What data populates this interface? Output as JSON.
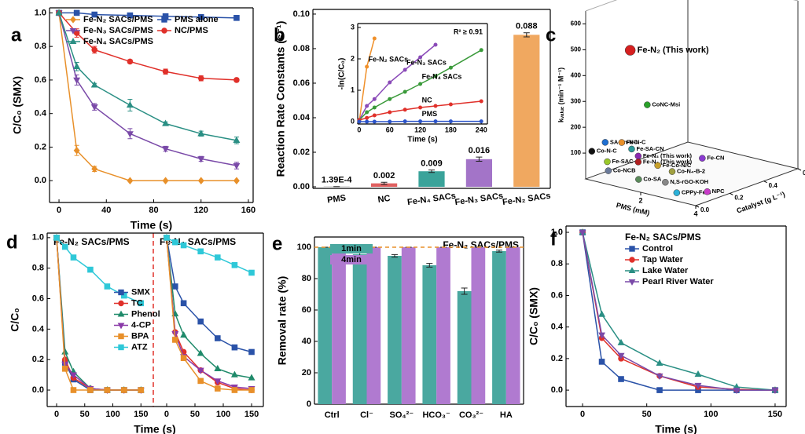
{
  "chart_data": [
    {
      "type": "line",
      "panel": "a",
      "xlabel": "Time (s)",
      "ylabel": "C/C₀ (SMX)",
      "x": [
        0,
        15,
        30,
        60,
        90,
        120,
        150
      ],
      "xlim": [
        -8,
        164
      ],
      "xticks": [
        0,
        40,
        80,
        120,
        160
      ],
      "ylim": [
        -0.13,
        1.03
      ],
      "yticks": [
        {
          "value": 0,
          "label": "0.0"
        },
        {
          "value": 0.2,
          "label": "0.2"
        },
        {
          "value": 0.4,
          "label": "0.4"
        },
        {
          "value": 0.6,
          "label": "0.6"
        },
        {
          "value": 0.8,
          "label": "0.8"
        },
        {
          "value": 1,
          "label": "1.0"
        }
      ],
      "legend": "upper right",
      "legend_columns": 2,
      "series": [
        {
          "name": "Fe-N₂ SACs/PMS",
          "color": "#e8902a",
          "marker": "diamond",
          "values": [
            1,
            0.18,
            0.07,
            0,
            0,
            0,
            0
          ],
          "errors": [
            0,
            0.03,
            0.015,
            0,
            0,
            0,
            0
          ]
        },
        {
          "name": "PMS alone",
          "color": "#2a52a8",
          "marker": "square",
          "values": [
            1,
            1,
            0.99,
            0.985,
            0.98,
            0.975,
            0.97
          ],
          "errors": [
            0,
            0,
            0,
            0,
            0,
            0,
            0
          ]
        },
        {
          "name": "Fe-N₃ SACs/PMS",
          "color": "#7a4aa8",
          "marker": "triangle-down",
          "values": [
            1,
            0.6,
            0.44,
            0.28,
            0.19,
            0.13,
            0.09
          ],
          "errors": [
            0,
            0.03,
            0.02,
            0.03,
            0.015,
            0.015,
            0.02
          ]
        },
        {
          "name": "NC/PMS",
          "color": "#e0302a",
          "marker": "circle",
          "values": [
            1,
            0.88,
            0.78,
            0.71,
            0.65,
            0.61,
            0.6
          ],
          "errors": [
            0,
            0.025,
            0.02,
            0.01,
            0.015,
            0.015,
            0.01
          ]
        },
        {
          "name": "Fe-N₄ SACs/PMS",
          "color": "#2a8f84",
          "marker": "triangle",
          "values": [
            1,
            0.68,
            0.57,
            0.45,
            0.34,
            0.28,
            0.24
          ],
          "errors": [
            0,
            0.025,
            0.01,
            0.035,
            0.01,
            0.015,
            0.02
          ]
        }
      ]
    },
    {
      "type": "bar",
      "panel": "b",
      "ylabel": "Reaction Rate Constants (s⁻¹)",
      "categories": [
        "PMS",
        "NC",
        "Fe-N₄ SACs",
        "Fe-N₃ SACs",
        "Fe-N₂ SACs"
      ],
      "values": [
        0.000139,
        0.002,
        0.009,
        0.016,
        0.088
      ],
      "errors": [
        0,
        0.0006,
        0.0007,
        0.0012,
        0.0012
      ],
      "value_labels": [
        "1.39E-4",
        "0.002",
        "0.009",
        "0.016",
        "0.088"
      ],
      "colors": [
        "#888888",
        "#e06060",
        "#3aa39a",
        "#a374c8",
        "#f0a860"
      ],
      "ylim": [
        -0.0009,
        0.1027
      ],
      "yticks": [
        {
          "value": 0,
          "label": "0.00"
        },
        {
          "value": 0.02,
          "label": "0.02"
        },
        {
          "value": 0.04,
          "label": "0.04"
        },
        {
          "value": 0.06,
          "label": "0.06"
        },
        {
          "value": 0.08,
          "label": "0.08"
        },
        {
          "value": 0.1,
          "label": "0.10"
        }
      ]
    },
    {
      "type": "line",
      "xlabel": "Time (s)",
      "ylabel": "-ln(C/C₀)",
      "annotation": "R² ≥ 0.91",
      "xlim": [
        -3,
        252
      ],
      "xticks": [
        0,
        60,
        120,
        180,
        240
      ],
      "ylim": [
        -0.075,
        3.125
      ],
      "yticks": [
        0,
        1,
        2,
        3
      ],
      "legend": "inline",
      "series": [
        {
          "name": "Fe-N₂ SACs",
          "color": "#f0902a",
          "marker": "circle",
          "x": [
            0,
            15,
            30
          ],
          "values": [
            0,
            1.75,
            2.65
          ]
        },
        {
          "name": "Fe-N₃ SACs",
          "color": "#8a4ab8",
          "marker": "circle",
          "x": [
            0,
            15,
            30,
            60,
            90,
            120,
            150
          ],
          "values": [
            0.05,
            0.5,
            0.72,
            1.25,
            1.65,
            2.05,
            2.45
          ]
        },
        {
          "name": "Fe-N₄ SACs",
          "color": "#3a9a3a",
          "marker": "circle",
          "x": [
            0,
            15,
            30,
            60,
            90,
            120,
            150,
            180,
            240
          ],
          "values": [
            0.05,
            0.3,
            0.45,
            0.72,
            0.95,
            1.2,
            1.45,
            1.72,
            2.28
          ]
        },
        {
          "name": "NC",
          "color": "#e0302a",
          "marker": "circle",
          "x": [
            0,
            15,
            30,
            60,
            90,
            120,
            150,
            180,
            240
          ],
          "values": [
            0.05,
            0.12,
            0.2,
            0.3,
            0.38,
            0.45,
            0.5,
            0.55,
            0.65
          ]
        },
        {
          "name": "PMS",
          "color": "#2a52c8",
          "marker": "circle",
          "x": [
            0,
            15,
            30,
            60,
            90,
            120,
            150,
            180,
            240
          ],
          "values": [
            0,
            0,
            0,
            0,
            0.01,
            0.01,
            0.01,
            0.01,
            0.01
          ]
        }
      ]
    },
    {
      "type": "scatter3d",
      "panel": "c",
      "xlabel": "PMS (mM)",
      "ylabel": "Catalyst (g L⁻¹)",
      "zlabel": "kᵥₐₗᵤₑ (min⁻¹ M⁻¹)",
      "xlim": [
        0,
        4
      ],
      "xticks": [
        2,
        4
      ],
      "ylim": [
        0,
        0.6
      ],
      "yticks": [
        {
          "value": 0,
          "label": "0.0"
        },
        {
          "value": 0.2,
          "label": "0.2"
        },
        {
          "value": 0.4,
          "label": "0.4"
        },
        {
          "value": 0.6,
          "label": "0.6"
        }
      ],
      "zlim": [
        0,
        650
      ],
      "zticks": [
        100,
        200,
        300,
        400,
        500,
        600
      ],
      "points": [
        {
          "label": "Fe-N₂ (This work)",
          "color": "#d62020",
          "x": 1,
          "y": 0.1,
          "z": 500
        },
        {
          "label": "CoNC-Msi",
          "color": "#2aa02a",
          "x": 1,
          "y": 0.2,
          "z": 265
        },
        {
          "label": "SA-Zn-NC",
          "color": "#1f6fd1",
          "x": 0.4,
          "y": 0.05,
          "z": 140
        },
        {
          "label": "Fe-N-C",
          "color": "#e8902a",
          "x": 1,
          "y": 0.05,
          "z": 155
        },
        {
          "label": "Fe-SA-CN",
          "color": "#2a9a9a",
          "x": 1.3,
          "y": 0.06,
          "z": 135
        },
        {
          "label": "Fe-N₃ (This work)",
          "color": "#8a2ab0",
          "label_color": "#d62020",
          "x": 1.6,
          "y": 0.05,
          "z": 118
        },
        {
          "label": "Fe-N₄ (This work)",
          "color": "#b02020",
          "label_color": "#d62020",
          "x": 1.6,
          "y": 0.05,
          "z": 95
        },
        {
          "label": "Co-N-C",
          "color": "#111111",
          "x": 0.1,
          "y": 0.02,
          "z": 105
        },
        {
          "label": "Fe-SAC",
          "color": "#9ac82a",
          "x": 0.6,
          "y": 0.03,
          "z": 75
        },
        {
          "label": "Co-NCB",
          "color": "#6a7a9a",
          "x": 0.7,
          "y": 0.02,
          "z": 45
        },
        {
          "label": "Fe-Co-N/C",
          "color": "#c8a02a",
          "x": 2,
          "y": 0.1,
          "z": 80
        },
        {
          "label": "Co-SA",
          "color": "#5a8a5a",
          "x": 1.8,
          "y": 0.02,
          "z": 40
        },
        {
          "label": "Co-N₄-B-2",
          "color": "#a0a040",
          "x": 2.4,
          "y": 0.12,
          "z": 62
        },
        {
          "label": "Fe-CN",
          "color": "#8a3ad0",
          "x": 3,
          "y": 0.2,
          "z": 110
        },
        {
          "label": "N,S-rGO-KOH",
          "color": "#888888",
          "x": 2.4,
          "y": 0.08,
          "z": 30
        },
        {
          "label": "CPPy-Fe-8",
          "color": "#2ab0d8",
          "x": 3,
          "y": 0.05,
          "z": 12
        },
        {
          "label": "NPC",
          "color": "#c83ac8",
          "x": 3.8,
          "y": 0.1,
          "z": 25
        }
      ]
    },
    {
      "type": "line",
      "panel": "d",
      "title": "Fe-N₂ SACs/PMS",
      "title_color": "#e0302a",
      "xlabel": "Time (s)",
      "ylabel": "C/C₀",
      "x": [
        0,
        15,
        30,
        60,
        90,
        120,
        150
      ],
      "xlim": [
        -16.8,
        172
      ],
      "xticks": [
        0,
        50,
        100,
        150
      ],
      "ylim": [
        -0.108,
        1.03
      ],
      "yticks": [
        {
          "value": 0,
          "label": "0.0"
        },
        {
          "value": 0.2,
          "label": "0.2"
        },
        {
          "value": 0.4,
          "label": "0.4"
        },
        {
          "value": 0.6,
          "label": "0.6"
        },
        {
          "value": 0.8,
          "label": "0.8"
        },
        {
          "value": 1,
          "label": "1.0"
        }
      ],
      "legend": "center right",
      "series": [
        {
          "name": "SMX",
          "color": "#2a52a8",
          "marker": "square",
          "values": [
            1,
            0.18,
            0.07,
            0,
            0,
            0,
            0
          ]
        },
        {
          "name": "TC",
          "color": "#e0302a",
          "marker": "circle",
          "values": [
            1,
            0.2,
            0.08,
            0.01,
            0,
            0,
            0
          ]
        },
        {
          "name": "Phenol",
          "color": "#1f8a6a",
          "marker": "triangle",
          "values": [
            1,
            0.25,
            0.12,
            0.01,
            0,
            0,
            0
          ]
        },
        {
          "name": "4-CP",
          "color": "#8a3aa8",
          "marker": "triangle-down",
          "values": [
            1,
            0.17,
            0.1,
            0.01,
            0,
            0,
            0
          ]
        },
        {
          "name": "BPA",
          "color": "#e8902a",
          "marker": "square",
          "values": [
            1,
            0.14,
            0,
            0,
            0,
            0,
            0
          ]
        },
        {
          "name": "ATZ",
          "color": "#2ec8d8",
          "marker": "square",
          "values": [
            1,
            0.94,
            0.87,
            0.79,
            0.68,
            0.62,
            0.57
          ]
        }
      ]
    },
    {
      "type": "line",
      "title": "Fe-N₄ SACs/PMS",
      "title_color": "#2a52a8",
      "x": [
        0,
        15,
        30,
        60,
        90,
        120,
        150
      ],
      "xlim": [
        -23.6,
        170.8
      ],
      "xticks": [
        0,
        50,
        100,
        150
      ],
      "ylim": [
        -0.108,
        1.03
      ],
      "series": [
        {
          "name": "SMX",
          "color": "#2a52a8",
          "marker": "square",
          "values": [
            1,
            0.68,
            0.57,
            0.45,
            0.34,
            0.28,
            0.25
          ]
        },
        {
          "name": "TC",
          "color": "#e0302a",
          "marker": "circle",
          "values": [
            1,
            0.38,
            0.25,
            0.13,
            0.05,
            0.01,
            0
          ]
        },
        {
          "name": "Phenol",
          "color": "#1f8a6a",
          "marker": "triangle",
          "values": [
            1,
            0.5,
            0.36,
            0.24,
            0.14,
            0.1,
            0.08
          ]
        },
        {
          "name": "4-CP",
          "color": "#8a3aa8",
          "marker": "triangle-down",
          "values": [
            1,
            0.37,
            0.22,
            0.13,
            0.06,
            0.02,
            0.01
          ]
        },
        {
          "name": "BPA",
          "color": "#e8902a",
          "marker": "square",
          "values": [
            1,
            0.33,
            0.21,
            0.06,
            0.01,
            0,
            0
          ]
        },
        {
          "name": "ATZ",
          "color": "#2ec8d8",
          "marker": "square",
          "values": [
            1,
            0.97,
            0.95,
            0.91,
            0.87,
            0.82,
            0.77
          ]
        }
      ]
    },
    {
      "type": "bar",
      "panel": "e",
      "ylabel": "Removal rate (%)",
      "annotation": "Fe-N₂ SACs/PMS",
      "annotation_color": "#e0302a",
      "categories": [
        "Ctrl",
        "Cl⁻",
        "SO₄²⁻",
        "HCO₃⁻",
        "CO₃²⁻",
        "HA"
      ],
      "ylim": [
        0,
        106.5
      ],
      "yticks": [
        0,
        20,
        40,
        60,
        80,
        100
      ],
      "refline": 100,
      "refline_color": "#e8902a",
      "legend": "upper left",
      "series": [
        {
          "name": "1min",
          "color": "#4aa8a0",
          "values": [
            100,
            95.5,
            94.5,
            88.5,
            72,
            97.5
          ],
          "errors": [
            0,
            0.8,
            0.8,
            1.2,
            2,
            0.6
          ]
        },
        {
          "name": "4min",
          "color": "#b07ad0",
          "values": [
            100,
            100,
            100,
            100,
            100,
            100
          ],
          "errors": [
            0,
            0,
            0,
            0,
            0,
            0
          ]
        }
      ]
    },
    {
      "type": "line",
      "panel": "f",
      "xlabel": "Time (s)",
      "ylabel": "C/C₀ (SMX)",
      "x": [
        0,
        15,
        30,
        60,
        90,
        120,
        150
      ],
      "xlim": [
        -12.9,
        158.6
      ],
      "xticks": [
        0,
        50,
        100,
        150
      ],
      "ylim": [
        -0.104,
        1.04
      ],
      "yticks": [
        {
          "value": 0,
          "label": "0.0"
        },
        {
          "value": 0.2,
          "label": "0.2"
        },
        {
          "value": 0.4,
          "label": "0.4"
        },
        {
          "value": 0.6,
          "label": "0.6"
        },
        {
          "value": 0.8,
          "label": "0.8"
        },
        {
          "value": 1,
          "label": "1.0"
        }
      ],
      "legend": "upper center",
      "legend_title": "Fe-N₂ SACs/PMS",
      "legend_title_color": "#e0302a",
      "series": [
        {
          "name": "Control",
          "color": "#2a52a8",
          "marker": "square",
          "values": [
            1,
            0.18,
            0.07,
            0,
            0,
            0,
            0
          ]
        },
        {
          "name": "Tap Water",
          "color": "#e0302a",
          "marker": "circle",
          "values": [
            1,
            0.33,
            0.2,
            0.09,
            0.02,
            0.005,
            0
          ]
        },
        {
          "name": "Lake Water",
          "color": "#2a8f84",
          "marker": "triangle",
          "values": [
            1,
            0.48,
            0.3,
            0.17,
            0.1,
            0.02,
            0
          ]
        },
        {
          "name": "Pearl River Water",
          "color": "#7a4aa8",
          "marker": "triangle-down",
          "values": [
            1,
            0.35,
            0.22,
            0.09,
            0.03,
            0,
            0
          ]
        }
      ]
    }
  ]
}
